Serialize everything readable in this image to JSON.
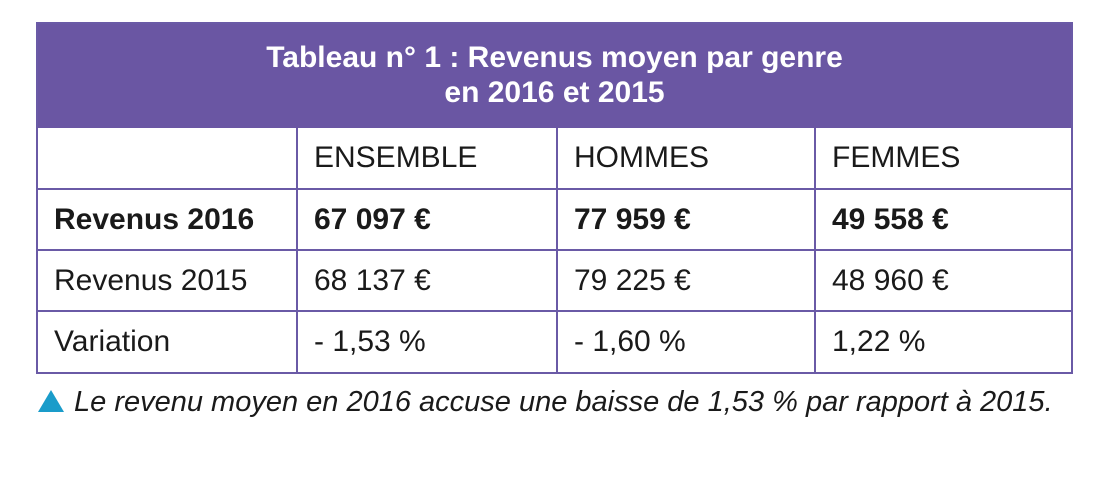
{
  "table": {
    "title_line1": "Tableau n° 1 : Revenus moyen par genre",
    "title_line2": "en 2016 et 2015",
    "headers": [
      "",
      "ENSEMBLE",
      "HOMMES",
      "FEMMES"
    ],
    "rows": [
      {
        "label": "Revenus 2016",
        "values": [
          "67 097 €",
          "77 959 €",
          "49 558 €"
        ],
        "bold": true
      },
      {
        "label": "Revenus 2015",
        "values": [
          "68 137 €",
          "79 225 €",
          "48 960 €"
        ]
      },
      {
        "label": "Variation",
        "values": [
          "- 1,53 %",
          "- 1,60 %",
          "1,22 %"
        ]
      }
    ]
  },
  "caption": {
    "icon": "triangle-up-icon",
    "text": "Le revenu moyen en 2016 accuse une baisse de 1,53 % par rapport à 2015."
  },
  "colors": {
    "header_bg": "#6a56a3",
    "border": "#6a5aa6",
    "bullet": "#1a9cca"
  }
}
